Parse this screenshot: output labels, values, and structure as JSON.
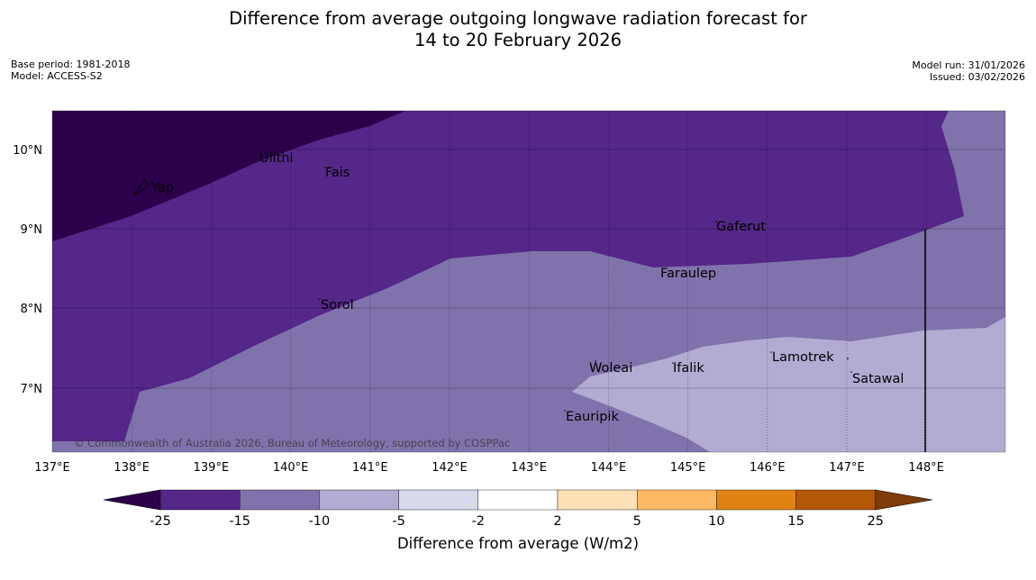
{
  "header": {
    "title_line1": "Difference from average outgoing longwave radiation forecast for",
    "title_line2": "14 to 20 February 2026",
    "base_period": "Base period: 1981-2018",
    "model": "Model: ACCESS-S2",
    "model_run": "Model run: 31/01/2026",
    "issued": "Issued: 03/02/2026"
  },
  "map": {
    "lon_labels": [
      "137°E",
      "138°E",
      "139°E",
      "140°E",
      "141°E",
      "142°E",
      "143°E",
      "144°E",
      "145°E",
      "146°E",
      "147°E",
      "148°E"
    ],
    "lat_labels": [
      "10°N",
      "9°N",
      "8°N",
      "7°N"
    ],
    "copyright": "© Commonwealth of Australia 2026, Bureau of Meteorology, supported by COSPPac",
    "places": [
      "Ulithi",
      "Yap",
      "Fais",
      "Gaferut",
      "Faraulep",
      "Sorol",
      "Lamotrek",
      "Woleai",
      "Ifalik",
      "Satawal",
      "Eauripik"
    ]
  },
  "colorbar": {
    "title": "Difference from average (W/m2)",
    "tick_labels": [
      "-25",
      "-15",
      "-10",
      "-5",
      "-2",
      "2",
      "5",
      "10",
      "15",
      "25"
    ],
    "colors": {
      "below": "#2d004b",
      "bins": [
        "#542788",
        "#8073ac",
        "#b2abd2",
        "#d8daeb",
        "#ffffff",
        "#fee0b6",
        "#fdb863",
        "#e08214",
        "#b35806"
      ],
      "above": "#7f3b08"
    }
  }
}
